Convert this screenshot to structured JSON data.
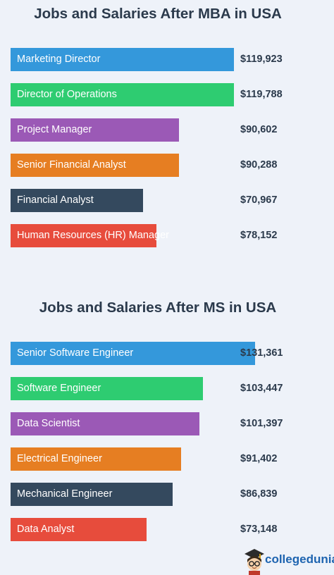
{
  "chart_data": [
    {
      "type": "bar",
      "orientation": "horizontal",
      "title": "Jobs and Salaries After MBA in USA",
      "categories": [
        "Marketing Director",
        "Director of Operations",
        "Project Manager",
        "Senior Financial Analyst",
        "Financial Analyst",
        "Human Resources (HR) Manager"
      ],
      "values": [
        119923,
        119788,
        90602,
        90288,
        70967,
        78152
      ],
      "value_labels": [
        "$119,923",
        "$119,788",
        "$90,602",
        "$90,288",
        "$70,967",
        "$78,152"
      ],
      "colors": [
        "#3498db",
        "#2ecc71",
        "#9b59b6",
        "#e67e22",
        "#34495e",
        "#e74c3c"
      ],
      "grid": false
    },
    {
      "type": "bar",
      "orientation": "horizontal",
      "title": "Jobs and Salaries After MS in USA",
      "categories": [
        "Senior Software Engineer",
        "Software Engineer",
        "Data Scientist",
        "Electrical Engineer",
        "Mechanical Engineer",
        "Data Analyst"
      ],
      "values": [
        131361,
        103447,
        101397,
        91402,
        86839,
        73148
      ],
      "value_labels": [
        "$131,361",
        "$103,447",
        "$101,397",
        "$91,402",
        "$86,839",
        "$73,148"
      ],
      "colors": [
        "#3498db",
        "#2ecc71",
        "#9b59b6",
        "#e67e22",
        "#34495e",
        "#e74c3c"
      ],
      "grid": false
    }
  ],
  "logo": {
    "text": "collegedunia"
  }
}
